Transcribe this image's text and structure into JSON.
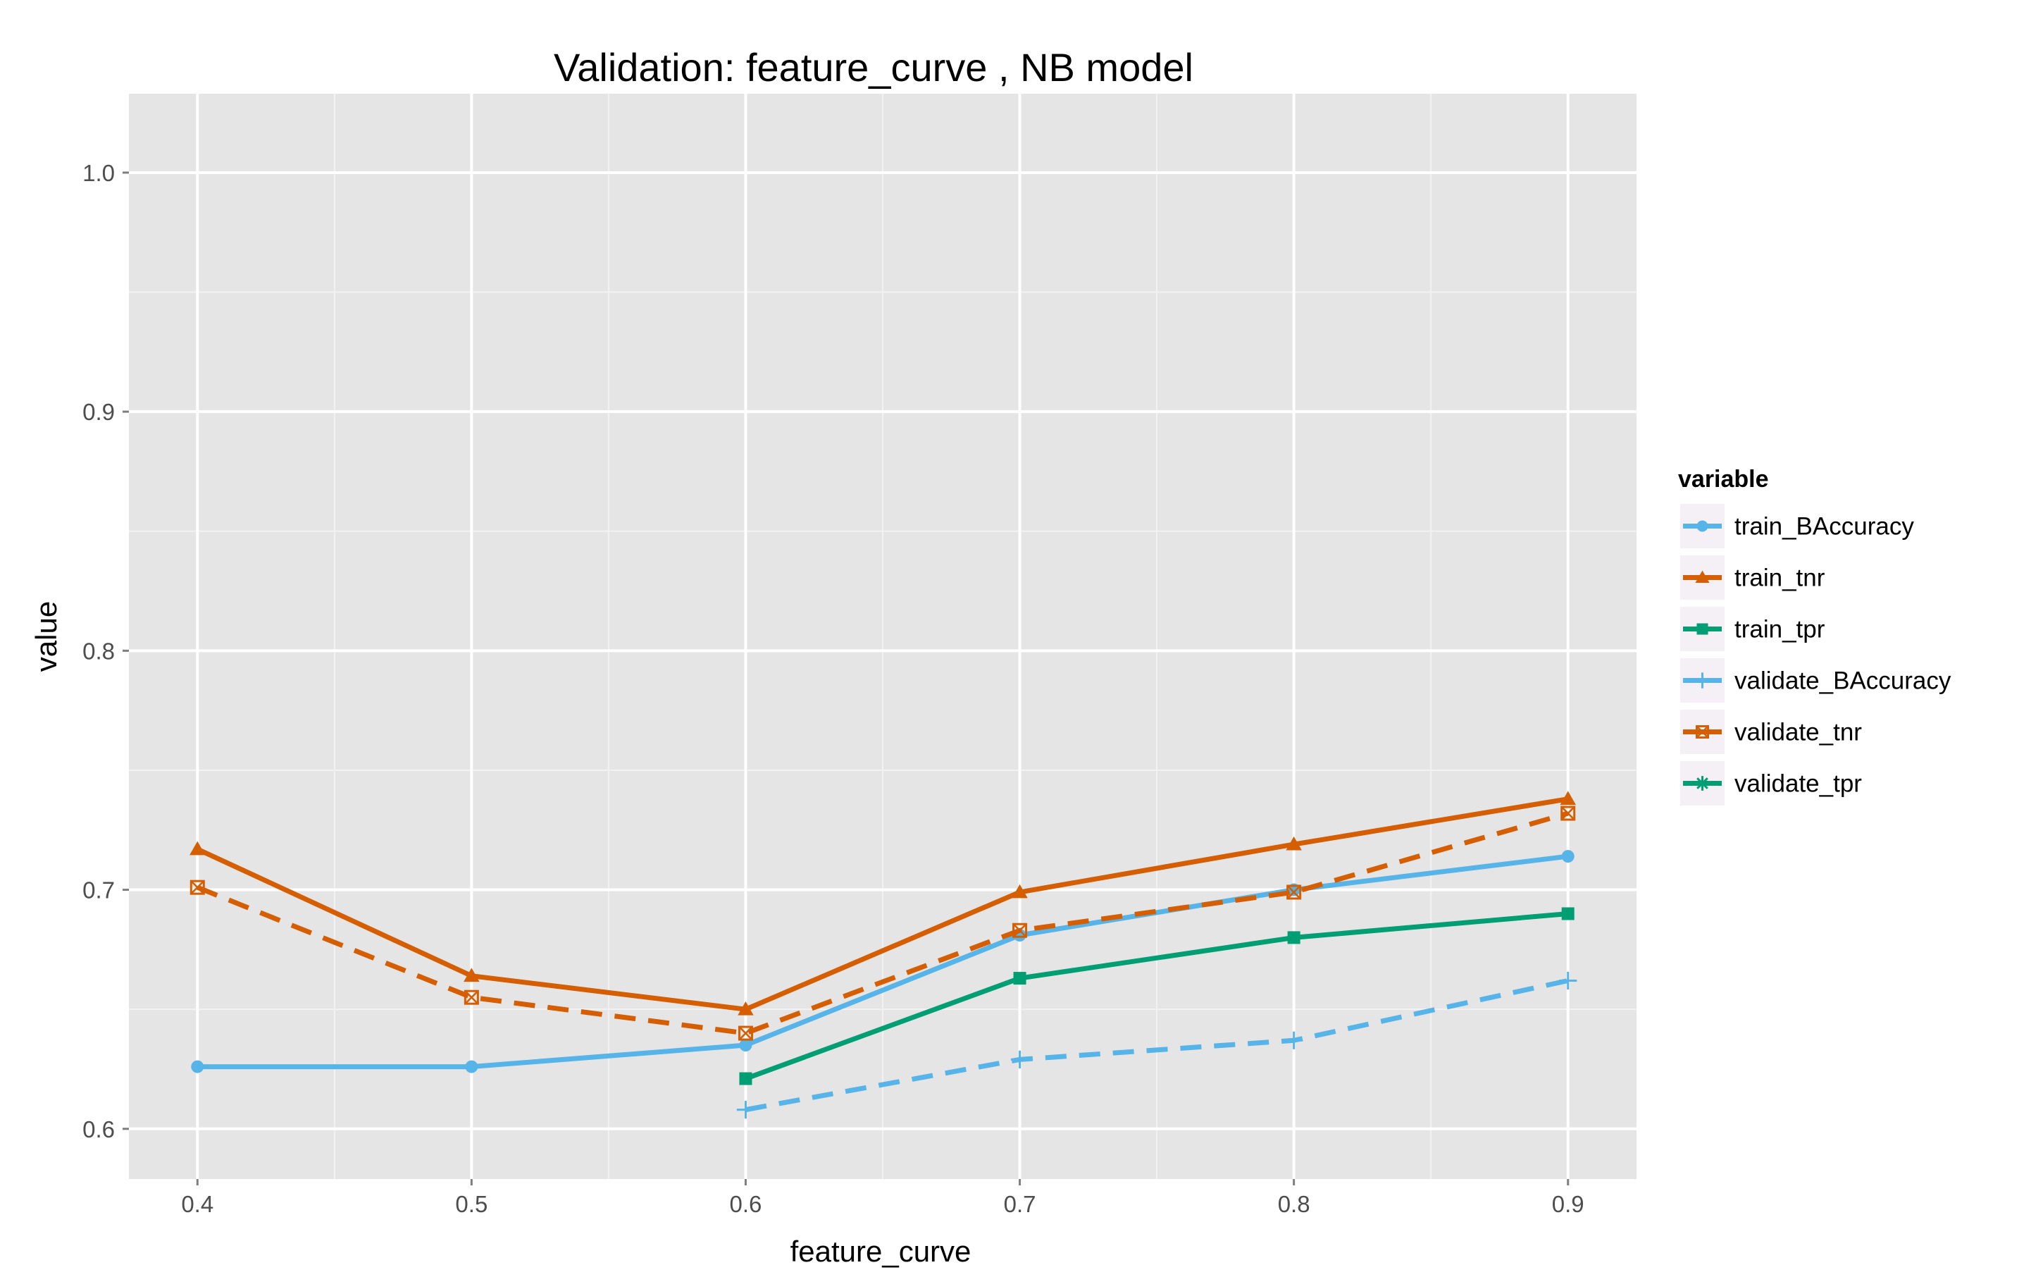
{
  "chart_data": {
    "type": "line",
    "title": "Validation:  feature_curve ,  NB model",
    "xlabel": "feature_curve",
    "ylabel": "value",
    "x": [
      0.4,
      0.5,
      0.6,
      0.7,
      0.8,
      0.9
    ],
    "x_tick_labels": [
      "0.4",
      "0.5",
      "0.6",
      "0.7",
      "0.8",
      "0.9"
    ],
    "xlim": [
      0.375,
      0.925
    ],
    "y_ticks": [
      0.6,
      0.7,
      0.8,
      0.9,
      1.0
    ],
    "y_tick_labels": [
      "0.6",
      "0.7",
      "0.8",
      "0.9",
      "1.0"
    ],
    "ylim": [
      0.579,
      1.033
    ],
    "grid": true,
    "legend": {
      "title": "variable",
      "position": "right"
    },
    "series": [
      {
        "name": "train_BAccuracy",
        "color": "#56B4E9",
        "dash": "solid",
        "marker": "circle",
        "values": [
          0.626,
          0.626,
          0.635,
          0.681,
          0.7,
          0.714
        ]
      },
      {
        "name": "train_tnr",
        "color": "#D55E00",
        "dash": "solid",
        "marker": "triangle",
        "values": [
          0.717,
          0.664,
          0.65,
          0.699,
          0.719,
          0.738
        ]
      },
      {
        "name": "train_tpr",
        "color": "#009E73",
        "dash": "solid",
        "marker": "square",
        "values": [
          null,
          null,
          0.621,
          0.663,
          0.68,
          0.69
        ]
      },
      {
        "name": "validate_BAccuracy",
        "color": "#56B4E9",
        "dash": "dashed",
        "marker": "plus",
        "values": [
          null,
          null,
          0.608,
          0.629,
          0.637,
          0.662
        ]
      },
      {
        "name": "validate_tnr",
        "color": "#D55E00",
        "dash": "dashed",
        "marker": "square-x",
        "values": [
          0.701,
          0.655,
          0.64,
          0.683,
          0.699,
          0.732
        ]
      },
      {
        "name": "validate_tpr",
        "color": "#009E73",
        "dash": "solid",
        "marker": "asterisk",
        "values": [
          null,
          null,
          null,
          null,
          null,
          null
        ]
      }
    ]
  }
}
